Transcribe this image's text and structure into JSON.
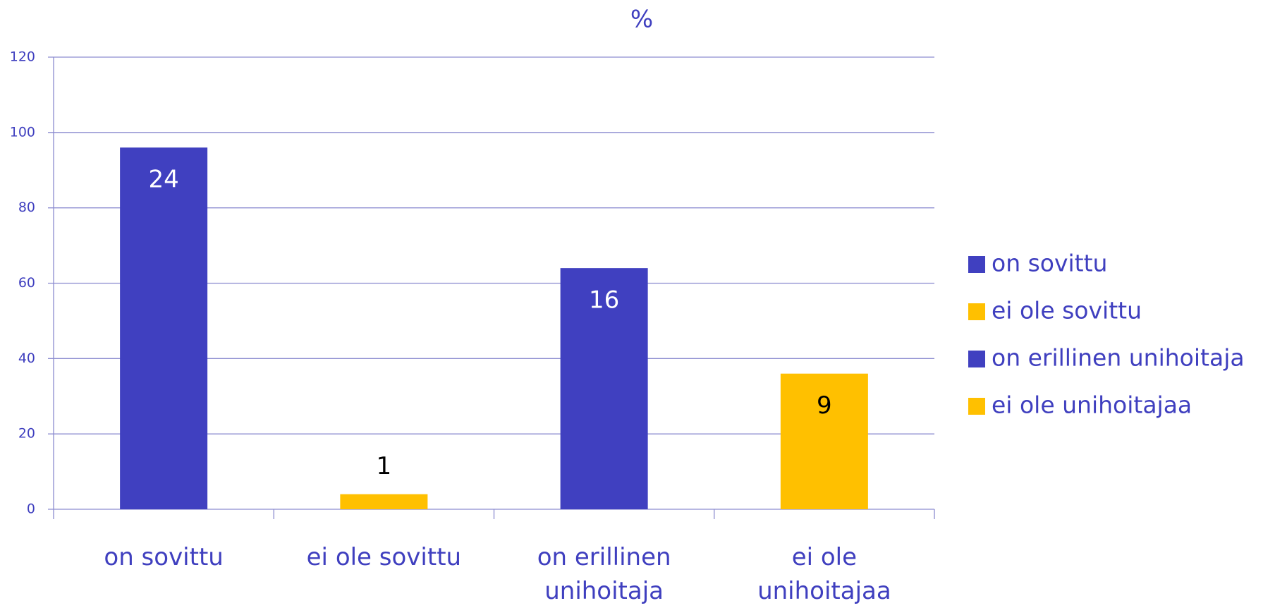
{
  "chart_data": {
    "type": "bar",
    "title": "%",
    "categories": [
      "on sovittu",
      "ei ole sovittu",
      "on erillinen unihoitaja",
      "ei ole unihoitajaa"
    ],
    "values": [
      96,
      4,
      64,
      36
    ],
    "data_labels": [
      24,
      1,
      16,
      9
    ],
    "colors": [
      "#4040c0",
      "#ffc000",
      "#4040c0",
      "#ffc000"
    ],
    "ylim": [
      0,
      120
    ],
    "yticks": [
      0,
      20,
      40,
      60,
      80,
      100,
      120
    ],
    "grid": true,
    "legend": "right"
  }
}
